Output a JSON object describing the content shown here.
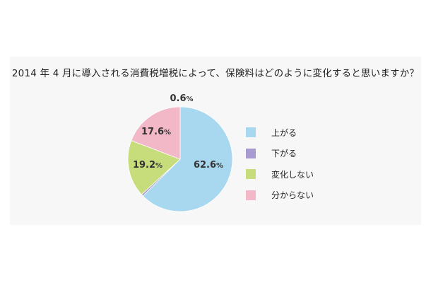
{
  "chart_data": {
    "type": "pie",
    "title": "2014 年 4 月に導入される消費税増税によって、保険料はどのように変化すると思いますか？",
    "categories": [
      "上がる",
      "下がる",
      "変化しない",
      "分からない"
    ],
    "values": [
      62.6,
      0.6,
      17.6,
      19.2
    ],
    "value_labels": [
      "62.6",
      "0.6",
      "17.6",
      "19.2"
    ],
    "unit": "%",
    "colors": [
      "#a8d8ef",
      "#a79bd0",
      "#c7dc7a",
      "#f2b8c8"
    ],
    "legend_position": "right",
    "start_angle": "12 o'clock",
    "direction": "clockwise"
  }
}
